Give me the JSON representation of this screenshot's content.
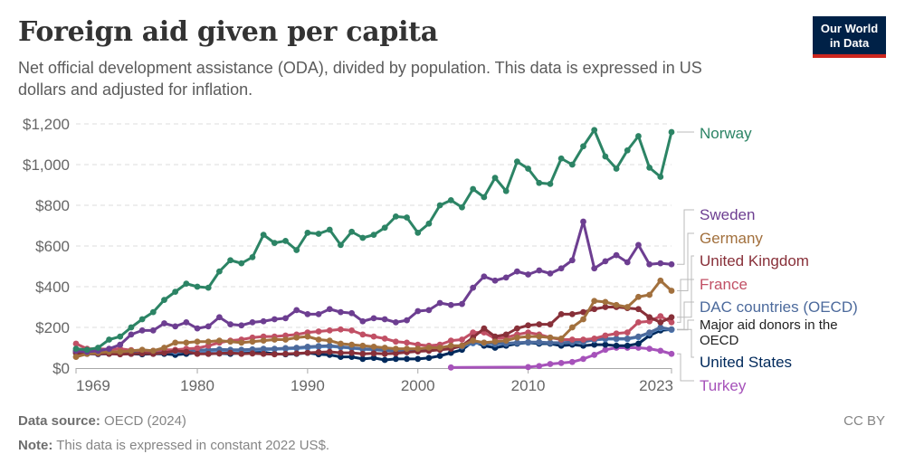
{
  "header": {
    "title": "Foreign aid given per capita",
    "subtitle": "Net official development assistance (ODA), divided by population. This data is expressed in US dollars and adjusted for inflation.",
    "logo_line1": "Our World",
    "logo_line2": "in Data"
  },
  "footer": {
    "source_label": "Data source:",
    "source_value": "OECD (2024)",
    "note_label": "Note:",
    "note_value": "This data is expressed in constant 2022 US$.",
    "license": "CC BY"
  },
  "chart_data": {
    "type": "line",
    "title": "Foreign aid given per capita",
    "xlabel": "",
    "ylabel": "",
    "xlim": [
      1969,
      2023
    ],
    "ylim": [
      0,
      1200
    ],
    "grid": true,
    "legend": "right (line-end labels)",
    "x_ticks": [
      1969,
      1980,
      1990,
      2000,
      2010,
      2023
    ],
    "y_ticks": [
      {
        "value": 0,
        "label": "$0"
      },
      {
        "value": 200,
        "label": "$200"
      },
      {
        "value": 400,
        "label": "$400"
      },
      {
        "value": 600,
        "label": "$600"
      },
      {
        "value": 800,
        "label": "$800"
      },
      {
        "value": 1000,
        "label": "$1,000"
      },
      {
        "value": 1200,
        "label": "$1,200"
      }
    ],
    "series": [
      {
        "name": "Norway",
        "color": "#2c8465",
        "start": 1969,
        "values": [
          95,
          90,
          100,
          140,
          155,
          200,
          240,
          275,
          335,
          375,
          415,
          400,
          395,
          475,
          530,
          515,
          545,
          655,
          615,
          625,
          580,
          665,
          660,
          680,
          605,
          670,
          640,
          655,
          690,
          745,
          740,
          665,
          710,
          800,
          825,
          790,
          880,
          840,
          935,
          870,
          1015,
          980,
          910,
          905,
          1030,
          1000,
          1090,
          1170,
          1040,
          980,
          1070,
          1140,
          985,
          940,
          1160
        ]
      },
      {
        "name": "Sweden",
        "color": "#6d3e91",
        "start": 1969,
        "values": [
          85,
          80,
          85,
          95,
          115,
          165,
          185,
          185,
          220,
          205,
          225,
          195,
          205,
          250,
          215,
          210,
          225,
          230,
          240,
          245,
          285,
          265,
          265,
          290,
          275,
          270,
          230,
          245,
          240,
          225,
          235,
          280,
          285,
          320,
          310,
          315,
          395,
          450,
          430,
          445,
          475,
          460,
          480,
          465,
          490,
          530,
          720,
          490,
          525,
          555,
          520,
          605,
          510,
          515,
          510
        ]
      },
      {
        "name": "Germany",
        "color": "#a2703d",
        "start": 1969,
        "values": [
          55,
          70,
          75,
          80,
          80,
          85,
          90,
          85,
          100,
          125,
          125,
          130,
          130,
          135,
          130,
          125,
          130,
          135,
          140,
          140,
          150,
          155,
          140,
          135,
          120,
          115,
          110,
          105,
          100,
          95,
          95,
          95,
          100,
          100,
          110,
          110,
          135,
          125,
          130,
          135,
          150,
          155,
          155,
          150,
          145,
          200,
          240,
          330,
          325,
          310,
          300,
          350,
          360,
          430,
          380
        ]
      },
      {
        "name": "United Kingdom",
        "color": "#883039",
        "start": 1969,
        "values": [
          75,
          70,
          70,
          70,
          68,
          70,
          72,
          70,
          75,
          85,
          80,
          70,
          70,
          72,
          75,
          70,
          72,
          70,
          68,
          70,
          72,
          75,
          78,
          80,
          75,
          75,
          70,
          72,
          70,
          72,
          78,
          82,
          85,
          90,
          95,
          110,
          150,
          195,
          155,
          165,
          195,
          210,
          215,
          215,
          265,
          265,
          275,
          290,
          300,
          300,
          295,
          290,
          250,
          225,
          250
        ]
      },
      {
        "name": "France",
        "color": "#c15065",
        "start": 1969,
        "values": [
          120,
          95,
          95,
          92,
          95,
          88,
          85,
          85,
          90,
          90,
          95,
          98,
          110,
          125,
          135,
          140,
          150,
          155,
          155,
          160,
          165,
          175,
          180,
          185,
          190,
          185,
          165,
          155,
          145,
          130,
          125,
          115,
          110,
          115,
          135,
          140,
          175,
          175,
          145,
          150,
          165,
          175,
          165,
          150,
          140,
          140,
          140,
          145,
          160,
          170,
          175,
          225,
          230,
          255,
          225
        ]
      },
      {
        "name": "DAC countries (OECD)",
        "color": "#4c6a9c",
        "start": 1969,
        "values": [
          80,
          78,
          75,
          75,
          78,
          78,
          80,
          80,
          82,
          85,
          88,
          88,
          90,
          92,
          90,
          90,
          92,
          95,
          95,
          98,
          100,
          105,
          108,
          110,
          105,
          100,
          95,
          92,
          88,
          85,
          85,
          85,
          88,
          95,
          100,
          108,
          125,
          125,
          120,
          122,
          125,
          128,
          128,
          125,
          125,
          128,
          130,
          140,
          145,
          145,
          145,
          155,
          175,
          200,
          190
        ]
      },
      {
        "name": "Major aid donors in the OECD",
        "color": "#578fce",
        "start": 1969,
        "values": [
          72,
          70,
          68,
          70,
          72,
          72,
          75,
          76,
          78,
          80,
          82,
          82,
          84,
          86,
          85,
          85,
          88,
          90,
          92,
          94,
          96,
          100,
          104,
          106,
          102,
          98,
          92,
          90,
          86,
          84,
          84,
          84,
          88,
          94,
          98,
          106,
          122,
          122,
          118,
          120,
          124,
          126,
          126,
          124,
          124,
          126,
          128,
          138,
          142,
          142,
          142,
          152,
          172,
          196,
          188
        ]
      },
      {
        "name": "United States",
        "color": "#00295b",
        "start": 1969,
        "values": [
          85,
          80,
          78,
          75,
          70,
          70,
          68,
          70,
          70,
          65,
          70,
          75,
          70,
          72,
          70,
          75,
          80,
          78,
          70,
          68,
          70,
          75,
          68,
          65,
          55,
          55,
          45,
          50,
          40,
          45,
          45,
          45,
          50,
          60,
          75,
          90,
          130,
          110,
          100,
          110,
          120,
          125,
          120,
          120,
          110,
          115,
          110,
          115,
          115,
          110,
          110,
          120,
          160,
          185,
          190
        ]
      },
      {
        "name": "Turkey",
        "color": "#a652ba",
        "start": 2003,
        "values": [
          3,
          null,
          null,
          null,
          null,
          null,
          null,
          5,
          10,
          20,
          25,
          30,
          45,
          65,
          90,
          100,
          100,
          100,
          95,
          85,
          70
        ]
      }
    ]
  }
}
